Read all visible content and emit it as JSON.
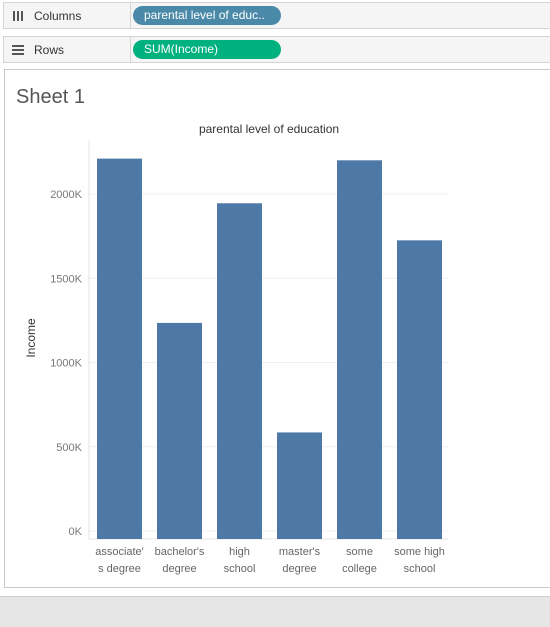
{
  "shelves": {
    "columns": {
      "label": "Columns",
      "icon": "columns-icon",
      "pill": "parental level of educ..",
      "pill_color": "#4a8aa8"
    },
    "rows": {
      "label": "Rows",
      "icon": "rows-icon",
      "pill": "SUM(Income)",
      "pill_color": "#00b180"
    }
  },
  "sheet": {
    "title": "Sheet 1"
  },
  "chart_data": {
    "type": "bar",
    "title": "parental level of education",
    "ylabel": "Income",
    "xlabel": "",
    "categories": [
      [
        "associate'",
        "s degree"
      ],
      [
        "bachelor's",
        "degree"
      ],
      [
        "high",
        "school"
      ],
      [
        "master's",
        "degree"
      ],
      [
        "some",
        "college"
      ],
      [
        "some high",
        "school"
      ]
    ],
    "values": [
      2210000,
      1235000,
      1945000,
      585000,
      2200000,
      1725000
    ],
    "ylim": [
      0,
      2200000
    ],
    "yticks": [
      0,
      500000,
      1000000,
      1500000,
      2000000
    ],
    "ytick_labels": [
      "0K",
      "500K",
      "1000K",
      "1500K",
      "2000K"
    ],
    "bar_color": "#4e79a7",
    "grid": true
  }
}
